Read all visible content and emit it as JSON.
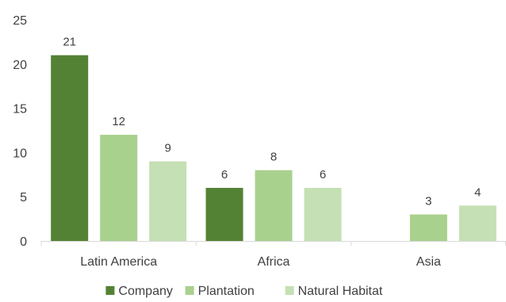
{
  "chart_data": {
    "type": "bar",
    "title": "",
    "xlabel": "",
    "ylabel": "",
    "ylim": [
      0,
      25
    ],
    "yticks": [
      "0",
      "5",
      "10",
      "15",
      "20",
      "25"
    ],
    "categories": [
      "Latin America",
      "Africa",
      "Asia"
    ],
    "series": [
      {
        "name": "Company",
        "color": "#548235",
        "values": [
          21,
          6,
          null
        ]
      },
      {
        "name": "Plantation",
        "color": "#a9d18e",
        "values": [
          12,
          8,
          3
        ]
      },
      {
        "name": "Natural Habitat",
        "color": "#c5e0b4",
        "values": [
          9,
          6,
          4
        ]
      }
    ],
    "grid": false,
    "legend": "bottom"
  }
}
